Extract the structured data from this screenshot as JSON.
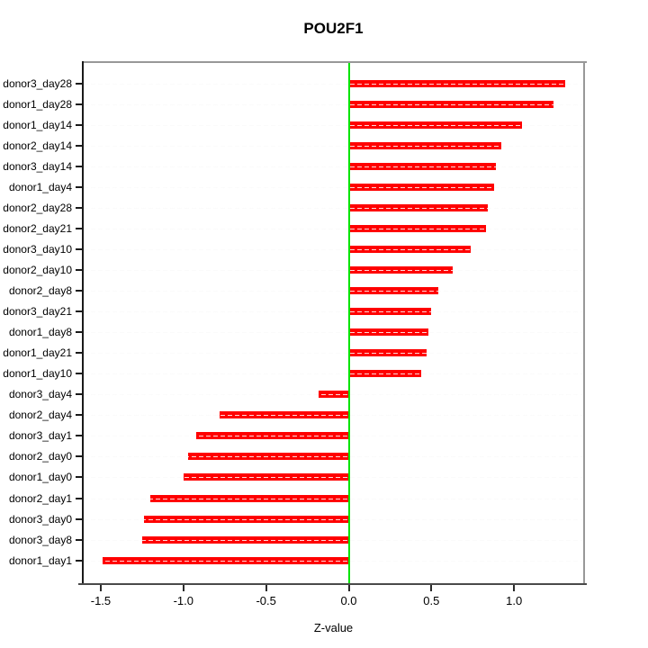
{
  "title": "POU2F1",
  "x_axis_title": "Z-value",
  "colors": {
    "bar": "#ff0000",
    "zero_line": "#00e400",
    "grid": "#e2e2e2",
    "box": "#989898",
    "y_axis": "#1a1a1a",
    "x_axis": "#4a4a4a",
    "background": "#ffffff",
    "text": "#000000"
  },
  "chart_data": {
    "type": "bar",
    "orientation": "horizontal",
    "title": "POU2F1",
    "xlabel": "Z-value",
    "ylabel": "",
    "categories": [
      "donor3_day28",
      "donor1_day28",
      "donor1_day14",
      "donor2_day14",
      "donor3_day14",
      "donor1_day4",
      "donor2_day28",
      "donor2_day21",
      "donor3_day10",
      "donor2_day10",
      "donor2_day8",
      "donor3_day21",
      "donor1_day8",
      "donor1_day21",
      "donor1_day10",
      "donor3_day4",
      "donor2_day4",
      "donor3_day1",
      "donor2_day0",
      "donor1_day0",
      "donor2_day1",
      "donor3_day0",
      "donor3_day8",
      "donor1_day1"
    ],
    "values": [
      1.31,
      1.24,
      1.05,
      0.92,
      0.89,
      0.88,
      0.84,
      0.83,
      0.74,
      0.63,
      0.54,
      0.5,
      0.48,
      0.47,
      0.44,
      -0.18,
      -0.78,
      -0.92,
      -0.97,
      -1.0,
      -1.2,
      -1.24,
      -1.25,
      -1.49
    ],
    "xlim": [
      -1.6,
      1.42
    ],
    "xticks": [
      -1.5,
      -1.0,
      -0.5,
      0.0,
      0.5,
      1.0
    ],
    "xtick_labels": [
      "-1.5",
      "-1.0",
      "-0.5",
      "0.0",
      "0.5",
      "1.0"
    ],
    "zero_reference_line": 0,
    "grid": "dashed horizontal line per category",
    "legend": "none",
    "bar_color": "#ff0000"
  }
}
